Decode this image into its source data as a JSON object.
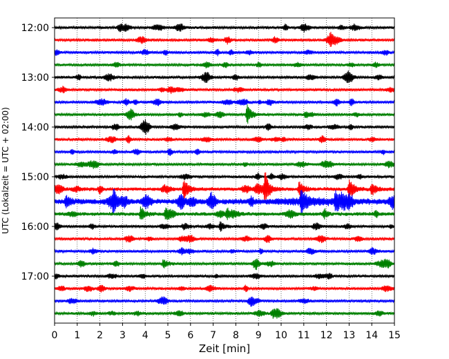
{
  "chart_data": {
    "type": "line",
    "xlabel": "Zeit  [min]",
    "ylabel": "UTC (Lokalzeit = UTC + 02:00)",
    "xlim": [
      0,
      15
    ],
    "x_ticks": [
      "0",
      "1",
      "2",
      "3",
      "4",
      "5",
      "6",
      "7",
      "8",
      "9",
      "10",
      "11",
      "12",
      "13",
      "14",
      "15"
    ],
    "y_ticks": [
      "12:00",
      "13:00",
      "14:00",
      "15:00",
      "16:00",
      "17:00"
    ],
    "vertical_grid": "dotted",
    "trace_interval_min": 15,
    "trace_color_cycle": [
      "#000000",
      "#ff0000",
      "#0000ff",
      "#008000"
    ],
    "traces": [
      {
        "start": "12:00",
        "color": "#000000",
        "level": "low"
      },
      {
        "start": "12:15",
        "color": "#ff0000",
        "level": "low"
      },
      {
        "start": "12:30",
        "color": "#0000ff",
        "level": "low"
      },
      {
        "start": "12:45",
        "color": "#008000",
        "level": "low"
      },
      {
        "start": "13:00",
        "color": "#000000",
        "level": "low"
      },
      {
        "start": "13:15",
        "color": "#ff0000",
        "level": "low"
      },
      {
        "start": "13:30",
        "color": "#0000ff",
        "level": "low"
      },
      {
        "start": "13:45",
        "color": "#008000",
        "level": "low",
        "events": [
          {
            "t": 8.5,
            "amp": 3.5
          }
        ]
      },
      {
        "start": "14:00",
        "color": "#000000",
        "level": "low"
      },
      {
        "start": "14:15",
        "color": "#ff0000",
        "level": "low"
      },
      {
        "start": "14:30",
        "color": "#0000ff",
        "level": "low"
      },
      {
        "start": "14:45",
        "color": "#008000",
        "level": "low"
      },
      {
        "start": "15:00",
        "color": "#000000",
        "level": "low"
      },
      {
        "start": "15:15",
        "color": "#ff0000",
        "level": "medium",
        "events": [
          {
            "t": 5.7,
            "amp": 4
          },
          {
            "t": 9.3,
            "amp": 5
          },
          {
            "t": 10.8,
            "amp": 3
          },
          {
            "t": 13.0,
            "amp": 4
          },
          {
            "t": 14.0,
            "amp": 2.5
          }
        ]
      },
      {
        "start": "15:30",
        "color": "#0000ff",
        "level": "high",
        "events": [
          {
            "t": 0.5,
            "amp": 2.5
          },
          {
            "t": 2.6,
            "amp": 3
          },
          {
            "t": 10.9,
            "amp": 5
          },
          {
            "t": 12.4,
            "amp": 3
          }
        ]
      },
      {
        "start": "15:45",
        "color": "#008000",
        "level": "medium",
        "events": [
          {
            "t": 3.8,
            "amp": 2.5
          },
          {
            "t": 4.9,
            "amp": 2
          },
          {
            "t": 7.6,
            "amp": 2
          }
        ]
      },
      {
        "start": "16:00",
        "color": "#000000",
        "level": "low",
        "events": [
          {
            "t": 7.3,
            "amp": 1.8
          }
        ]
      },
      {
        "start": "16:15",
        "color": "#ff0000",
        "level": "low"
      },
      {
        "start": "16:30",
        "color": "#0000ff",
        "level": "low"
      },
      {
        "start": "16:45",
        "color": "#008000",
        "level": "low",
        "events": [
          {
            "t": 4.8,
            "amp": 1.6
          }
        ]
      },
      {
        "start": "17:00",
        "color": "#000000",
        "level": "low"
      },
      {
        "start": "17:15",
        "color": "#ff0000",
        "level": "low"
      },
      {
        "start": "17:30",
        "color": "#0000ff",
        "level": "low"
      },
      {
        "start": "17:45",
        "color": "#008000",
        "level": "low"
      }
    ]
  }
}
